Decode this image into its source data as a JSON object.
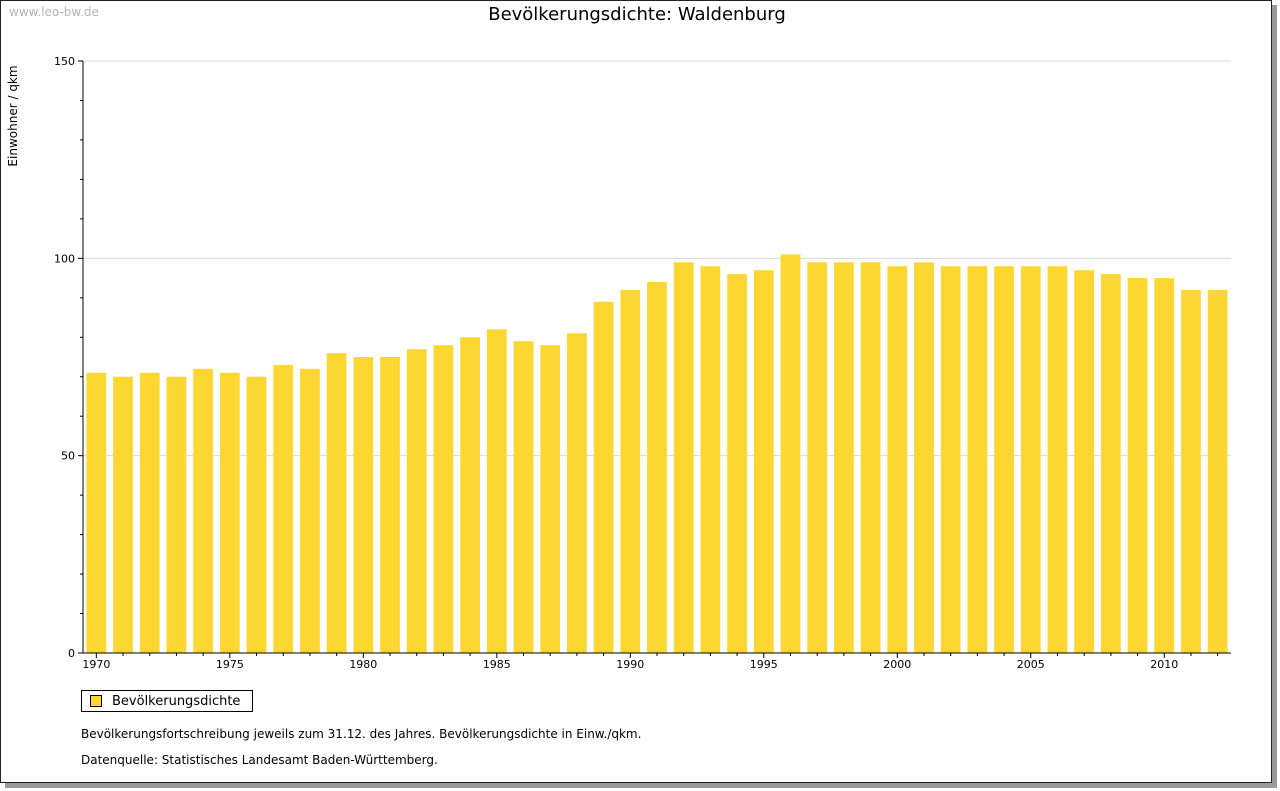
{
  "watermark": "www.leo-bw.de",
  "colors": {
    "bar": "#fdd731",
    "grid": "#d9d9d9",
    "axis": "#000000"
  },
  "chart_data": {
    "type": "bar",
    "title": "Bevölkerungsdichte: Waldenburg",
    "ylabel": "Einwohner / qkm",
    "xlabel": "",
    "ylim": [
      0,
      150
    ],
    "yticks": [
      0,
      50,
      100,
      150
    ],
    "xtick_labels": [
      "1970",
      "1975",
      "1980",
      "1985",
      "1990",
      "1995",
      "2000",
      "2005",
      "2010"
    ],
    "grid": true,
    "legend_position": "bottom-left",
    "categories": [
      1970,
      1971,
      1972,
      1973,
      1974,
      1975,
      1976,
      1977,
      1978,
      1979,
      1980,
      1981,
      1982,
      1983,
      1984,
      1985,
      1986,
      1987,
      1988,
      1989,
      1990,
      1991,
      1992,
      1993,
      1994,
      1995,
      1996,
      1997,
      1998,
      1999,
      2000,
      2001,
      2002,
      2003,
      2004,
      2005,
      2006,
      2007,
      2008,
      2009,
      2010,
      2011,
      2012
    ],
    "series": [
      {
        "name": "Bevölkerungsdichte",
        "values": [
          71,
          70,
          71,
          70,
          72,
          71,
          70,
          73,
          72,
          76,
          75,
          75,
          77,
          78,
          80,
          82,
          79,
          78,
          81,
          89,
          92,
          94,
          99,
          98,
          96,
          97,
          101,
          99,
          99,
          99,
          98,
          99,
          98,
          98,
          98,
          98,
          98,
          97,
          96,
          95,
          95,
          92,
          92
        ]
      }
    ]
  },
  "notes": {
    "line1": "Bevölkerungsfortschreibung jeweils zum 31.12. des Jahres. Bevölkerungsdichte in Einw./qkm.",
    "line2": "Datenquelle: Statistisches Landesamt Baden-Württemberg."
  }
}
